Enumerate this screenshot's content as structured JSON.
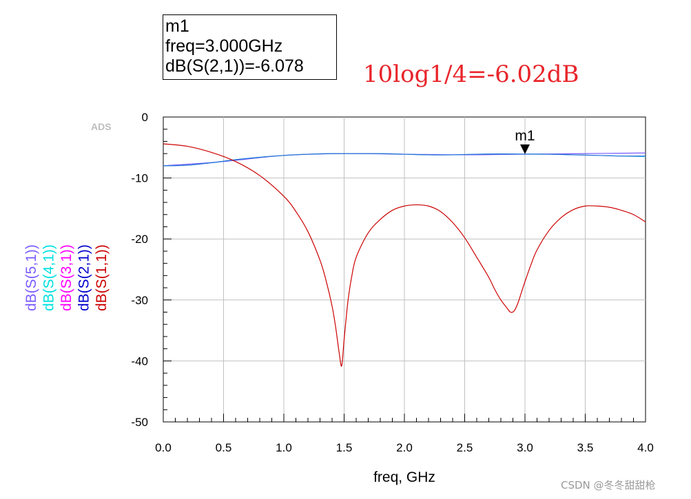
{
  "marker_box": {
    "name": "m1",
    "freq_line": "freq=3.000GHz",
    "value_line": "dB(S(2,1))=-6.078"
  },
  "annotation": "10log1/4=-6.02dB",
  "ads_label": "ADS",
  "watermark": "CSDN @冬冬甜甜枪",
  "colors": {
    "s11": "#cc0000",
    "s21": "#0000cc",
    "s31": "#ff00ff",
    "s41": "#00e0e0",
    "s51": "#7a5cff",
    "annotation": "#e8242a",
    "grid": "#c0c0c0"
  },
  "chart_data": {
    "type": "line",
    "title": "",
    "xlabel": "freq, GHz",
    "ylabel": "",
    "xlim": [
      0,
      4
    ],
    "ylim": [
      -50,
      0
    ],
    "x_ticks": [
      "0.0",
      "0.5",
      "1.0",
      "1.5",
      "2.0",
      "2.5",
      "3.0",
      "3.5",
      "4.0"
    ],
    "y_ticks": [
      "0",
      "-10",
      "-20",
      "-30",
      "-40",
      "-50"
    ],
    "grid": true,
    "legend": [
      "dB(S(5,1))",
      "dB(S(4,1))",
      "dB(S(3,1))",
      "dB(S(2,1))",
      "dB(S(1,1))"
    ],
    "series": [
      {
        "name": "dB(S(1,1))",
        "color": "#cc0000",
        "x": [
          0,
          0.2,
          0.4,
          0.6,
          0.8,
          1.0,
          1.1,
          1.2,
          1.3,
          1.35,
          1.4,
          1.43,
          1.46,
          1.48,
          1.5,
          1.53,
          1.56,
          1.6,
          1.7,
          1.8,
          1.9,
          2.0,
          2.1,
          2.2,
          2.3,
          2.4,
          2.5,
          2.6,
          2.7,
          2.75,
          2.8,
          2.85,
          2.88,
          2.91,
          2.94,
          2.97,
          3.0,
          3.05,
          3.1,
          3.2,
          3.3,
          3.4,
          3.5,
          3.6,
          3.7,
          3.8,
          3.9,
          4.0
        ],
        "y": [
          -4.4,
          -4.8,
          -5.8,
          -7.3,
          -9.6,
          -13.0,
          -15.5,
          -18.8,
          -23.5,
          -26.8,
          -31.0,
          -34.5,
          -38.8,
          -40.8,
          -36.5,
          -30.5,
          -26.5,
          -23.0,
          -19.0,
          -16.8,
          -15.3,
          -14.6,
          -14.4,
          -14.6,
          -15.5,
          -17.3,
          -19.8,
          -23.0,
          -26.3,
          -28.3,
          -30.0,
          -31.3,
          -32.0,
          -31.8,
          -30.6,
          -28.8,
          -27.0,
          -24.2,
          -21.8,
          -18.6,
          -16.5,
          -15.2,
          -14.6,
          -14.6,
          -14.8,
          -15.3,
          -16.0,
          -17.2
        ]
      },
      {
        "name": "dB(S(2,1))",
        "color": "#2a6fd8",
        "x": [
          0,
          0.2,
          0.4,
          0.6,
          0.8,
          1.0,
          1.2,
          1.4,
          1.6,
          1.8,
          2.0,
          2.2,
          2.4,
          2.6,
          2.8,
          3.0,
          3.2,
          3.4,
          3.6,
          3.8,
          4.0
        ],
        "y": [
          -8.0,
          -7.9,
          -7.5,
          -7.0,
          -6.6,
          -6.3,
          -6.1,
          -6.0,
          -6.0,
          -6.0,
          -6.1,
          -6.2,
          -6.2,
          -6.1,
          -6.05,
          -6.078,
          -6.1,
          -6.2,
          -6.3,
          -6.4,
          -6.4
        ]
      },
      {
        "name": "dB(S(4,1))",
        "color": "#33c8dc",
        "x": [
          0,
          0.2,
          0.4,
          0.6,
          0.8,
          1.0,
          1.2,
          1.4,
          1.6,
          1.8,
          2.0,
          2.2,
          2.4,
          2.6,
          2.8,
          3.0,
          3.2,
          3.4,
          3.6,
          3.8,
          4.0
        ],
        "y": [
          -8.0,
          -7.9,
          -7.5,
          -7.0,
          -6.6,
          -6.3,
          -6.1,
          -6.0,
          -6.0,
          -6.0,
          -6.1,
          -6.2,
          -6.2,
          -6.1,
          -6.05,
          -6.1,
          -6.1,
          -6.2,
          -6.3,
          -6.4,
          -6.5
        ]
      },
      {
        "name": "dB(S(5,1))",
        "color": "#7a5cff",
        "x": [
          0,
          0.5,
          1.0,
          1.5,
          2.0,
          2.5,
          3.0,
          3.5,
          4.0
        ],
        "y": [
          -8.0,
          -7.3,
          -6.3,
          -6.0,
          -6.1,
          -6.2,
          -6.1,
          -6.0,
          -5.9
        ]
      }
    ],
    "markers": [
      {
        "name": "m1",
        "x": 3.0,
        "y": -6.078
      }
    ]
  }
}
